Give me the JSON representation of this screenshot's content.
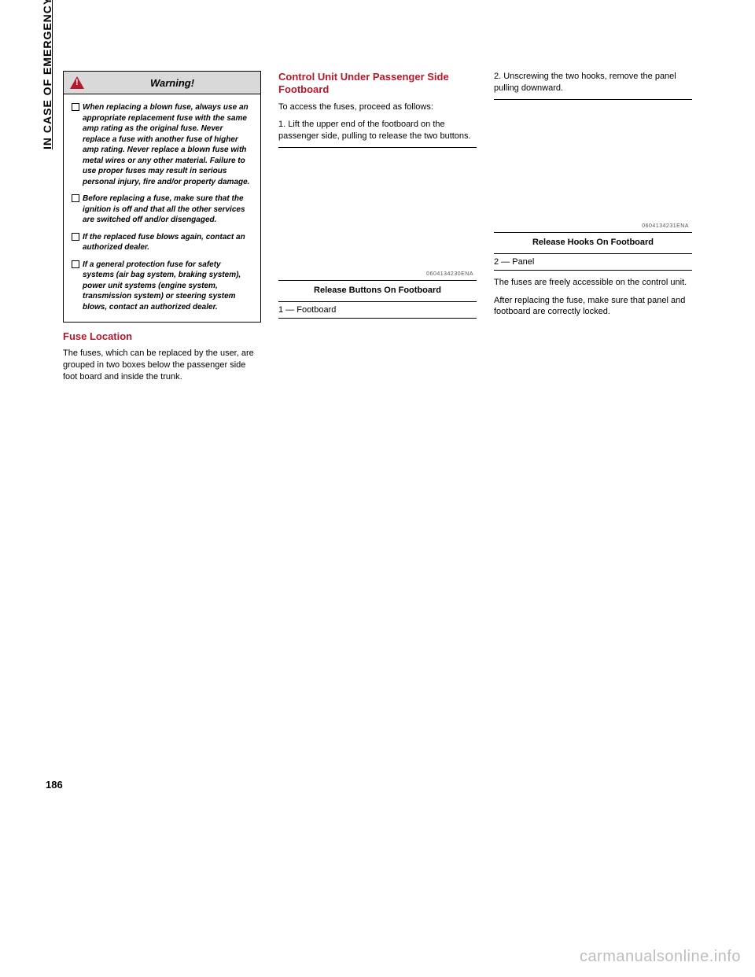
{
  "side_label": "IN CASE OF EMERGENCY",
  "page_number": "186",
  "watermark": "carmanualsonline.info",
  "warning": {
    "title": "Warning!",
    "items": [
      "When replacing a blown fuse, always use an appropriate replacement fuse with the same amp rating as the original fuse. Never replace a fuse with another fuse of higher amp rating. Never replace a blown fuse with metal wires or any other material. Failure to use proper fuses may result in serious personal injury, fire and/or property damage.",
      "Before replacing a fuse, make sure that the ignition is off and that all the other services are switched off and/or disengaged.",
      "If the replaced fuse blows again, contact an authorized dealer.",
      "If a general protection fuse for safety systems (air bag system, braking system), power unit systems (engine system, transmission system) or steering system blows, contact an authorized dealer."
    ]
  },
  "col1": {
    "fuse_location_heading": "Fuse Location",
    "fuse_location_text": "The fuses, which can be replaced by the user, are grouped in two boxes below the passenger side foot board and inside the trunk."
  },
  "col2": {
    "heading": "Control Unit Under Passenger Side Footboard",
    "intro": "To access the fuses, proceed as follows:",
    "step1": "1.   Lift the upper end of the footboard on the passenger side, pulling to release the two buttons.",
    "fig_id": "0604134230ENA",
    "caption": "Release Buttons On Footboard",
    "legend": "1 — Footboard"
  },
  "col3": {
    "step2": "2.   Unscrewing the two hooks, remove the panel pulling downward.",
    "fig_id": "0604134231ENA",
    "caption": "Release Hooks On Footboard",
    "legend": "2 — Panel",
    "text1": "The fuses are freely accessible on the control unit.",
    "text2": "After replacing the fuse, make sure that panel and footboard are correctly locked."
  }
}
